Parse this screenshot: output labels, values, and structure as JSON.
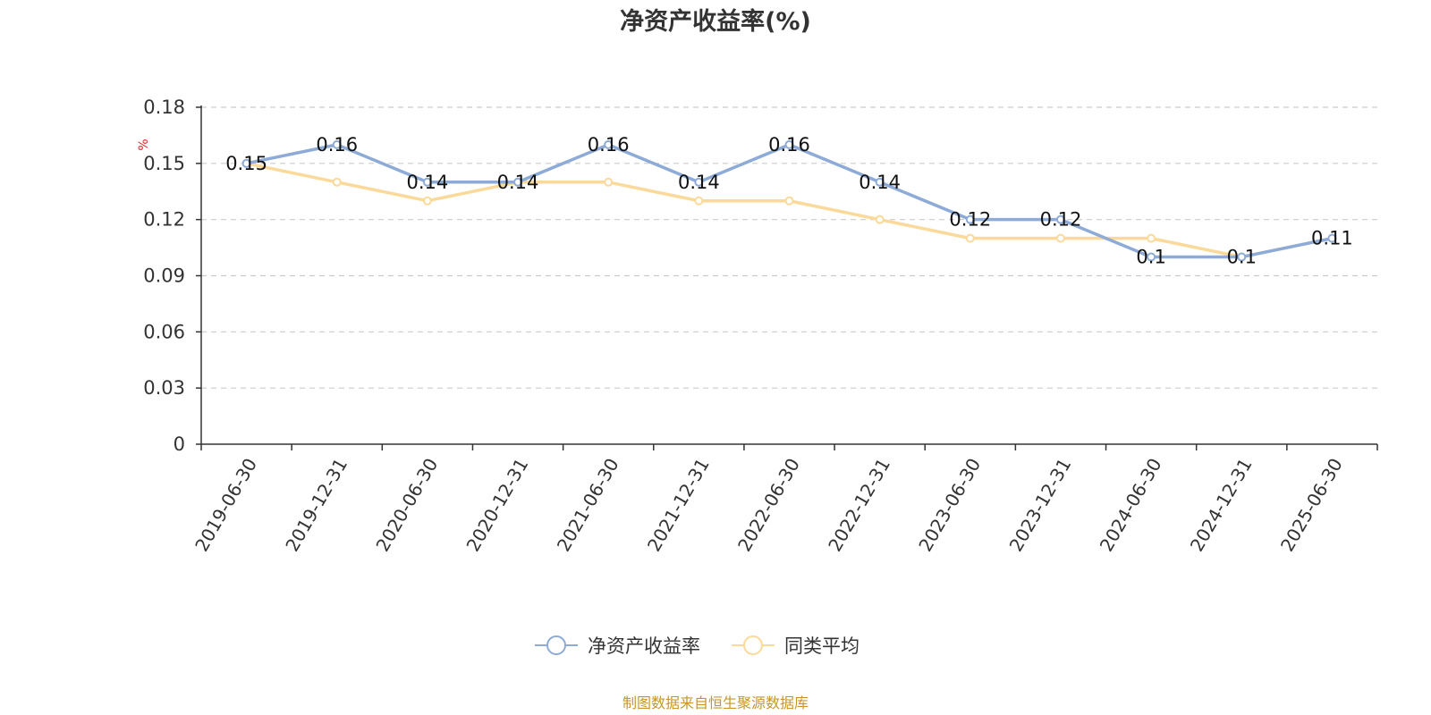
{
  "chart_data": {
    "type": "line",
    "title": "净资产收益率(%)",
    "ylabel": "%",
    "xlabel": "",
    "ylim": [
      0,
      0.18
    ],
    "yticks": [
      "0",
      "0.03",
      "0.06",
      "0.09",
      "0.12",
      "0.15",
      "0.18"
    ],
    "ytick_values": [
      0,
      0.03,
      0.06,
      0.09,
      0.12,
      0.15,
      0.18
    ],
    "categories": [
      "2019-06-30",
      "2019-12-31",
      "2020-06-30",
      "2020-12-31",
      "2021-06-30",
      "2021-12-31",
      "2022-06-30",
      "2022-12-31",
      "2023-06-30",
      "2023-12-31",
      "2024-06-30",
      "2024-12-31",
      "2025-06-30"
    ],
    "grid": true,
    "legend_position": "bottom",
    "series": [
      {
        "name": "净资产收益率",
        "color": "#8eabd8",
        "values": [
          0.15,
          0.16,
          0.14,
          0.14,
          0.16,
          0.14,
          0.16,
          0.14,
          0.12,
          0.12,
          0.1,
          0.1,
          0.11
        ],
        "labels": [
          "0.15",
          "0.16",
          "0.14",
          "0.14",
          "0.16",
          "0.14",
          "0.16",
          "0.14",
          "0.12",
          "0.12",
          "0.1",
          "0.1",
          "0.11"
        ]
      },
      {
        "name": "同类平均",
        "color": "#fbd99a",
        "values": [
          0.15,
          0.14,
          0.13,
          0.14,
          0.14,
          0.13,
          0.13,
          0.12,
          0.11,
          0.11,
          0.11,
          0.1,
          0.11
        ]
      }
    ],
    "source": "制图数据来自恒生聚源数据库"
  }
}
